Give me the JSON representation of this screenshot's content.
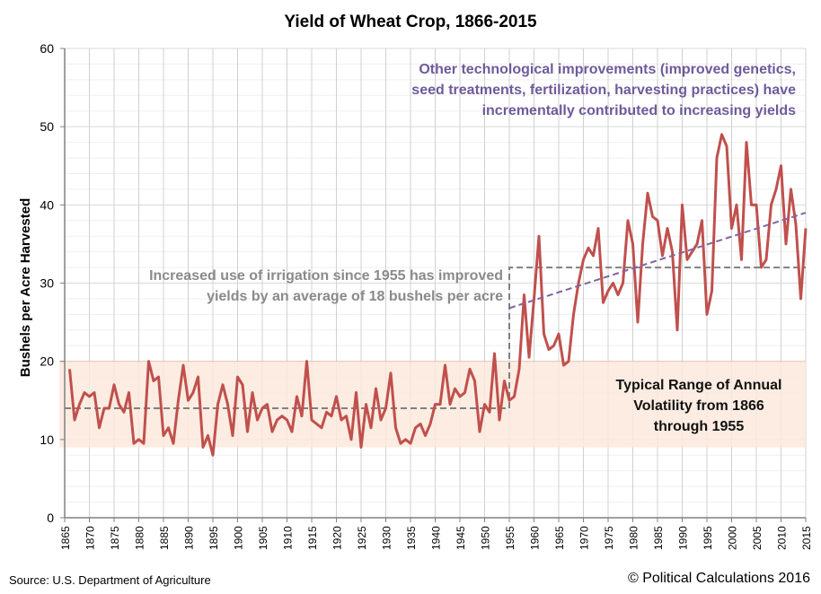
{
  "chart_data": {
    "type": "line",
    "title": "Yield of Wheat Crop, 1866-2015",
    "ylabel": "Bushels per Acre Harvested",
    "xlabel": "",
    "xlim": [
      1865,
      2015
    ],
    "ylim": [
      0,
      60
    ],
    "grid": true,
    "x_ticks": [
      1865,
      1870,
      1875,
      1880,
      1885,
      1890,
      1895,
      1900,
      1905,
      1910,
      1915,
      1920,
      1925,
      1930,
      1935,
      1940,
      1945,
      1950,
      1955,
      1960,
      1965,
      1970,
      1975,
      1980,
      1985,
      1990,
      1995,
      2000,
      2005,
      2010,
      2015
    ],
    "y_ticks": [
      0,
      10,
      20,
      30,
      40,
      50,
      60
    ],
    "start_year": 1866,
    "values": [
      19,
      12.5,
      14.5,
      16,
      15.5,
      16,
      11.5,
      14,
      14,
      17,
      14.5,
      13.5,
      16,
      9.5,
      10,
      9.5,
      20,
      17.5,
      18,
      10.5,
      11.5,
      9.5,
      15,
      19.5,
      15,
      16,
      18,
      9,
      10.5,
      8,
      14.5,
      17,
      14.5,
      10.5,
      18,
      17,
      11,
      16,
      12.5,
      14,
      14.5,
      11,
      12.5,
      13,
      12.5,
      11,
      15.5,
      13,
      20,
      12.5,
      12,
      11.5,
      13.5,
      13,
      15.5,
      12.5,
      13,
      10,
      16,
      9,
      14.5,
      11.5,
      16.5,
      12.5,
      14,
      18.5,
      11.5,
      9.5,
      10,
      9.5,
      11.5,
      12,
      10.5,
      12,
      14.5,
      14.5,
      19.5,
      14.5,
      16.5,
      15.5,
      16,
      19,
      17.5,
      11,
      14.5,
      13.5,
      21,
      12.5,
      17.5,
      15,
      15.5,
      19,
      28.5,
      20.5,
      28,
      36,
      23.5,
      21.5,
      22,
      23.5,
      19.5,
      20,
      26,
      30,
      33,
      34.5,
      33.5,
      37,
      27.5,
      29,
      30,
      28.5,
      30,
      38,
      35,
      25,
      35,
      41.5,
      38.5,
      38,
      33.5,
      37,
      34,
      24,
      40,
      33,
      34,
      35,
      38,
      26,
      29,
      46,
      49,
      47.5,
      37,
      40,
      33,
      48,
      40,
      40,
      32,
      33,
      40,
      42,
      45,
      35,
      42,
      37.5,
      28,
      37
    ],
    "volatility_band": [
      9,
      20
    ],
    "pre_1955_average": 14,
    "post_1955_average": 32,
    "trend_line": {
      "x": [
        1955,
        2015
      ],
      "y": [
        26.8,
        39
      ]
    },
    "colors": {
      "series": "#c0504d",
      "band": "#fce9dc",
      "average": "#808080",
      "trend": "#8064a2"
    },
    "annotations": {
      "tech": [
        "Other technological  improvements (improved genetics,",
        "seed treatments, fertilization, harvesting practices) have",
        "incrementally contributed to increasing yields"
      ],
      "irrigation": [
        "Increased use of irrigation since 1955 has improved",
        "yields by an average of 18 bushels per acre"
      ],
      "volatility": [
        "Typical Range of Annual",
        "Volatility from 1866",
        "through 1955"
      ]
    }
  },
  "footer": {
    "source": "Source: U.S. Department of Agriculture",
    "copyright": "© Political Calculations 2016"
  }
}
